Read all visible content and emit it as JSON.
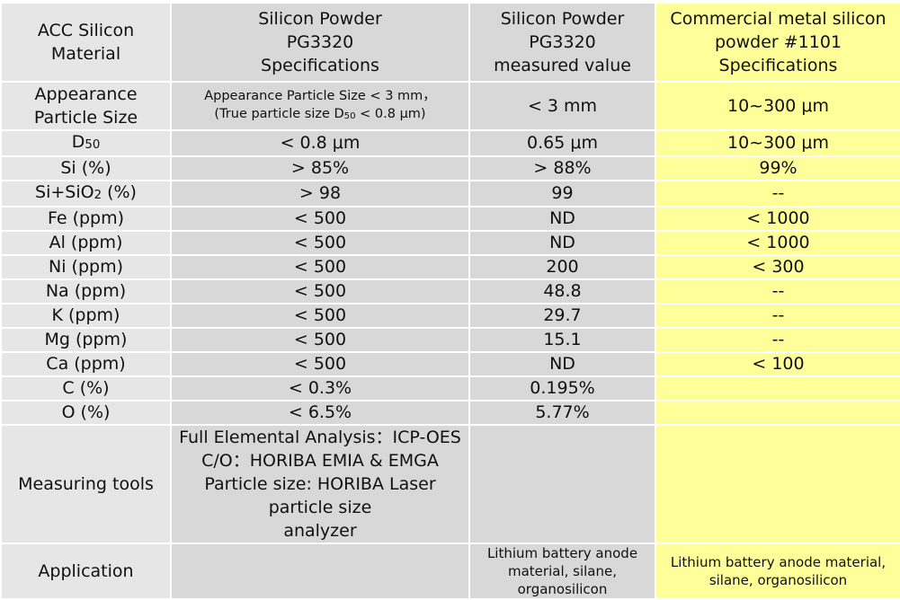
{
  "header": {
    "col0": [
      "ACC Silicon",
      "Material"
    ],
    "col1": [
      "Silicon Powder",
      "PG3320",
      "Specifications"
    ],
    "col2": [
      "Silicon Powder",
      "PG3320",
      "measured value"
    ],
    "col3": [
      "Commercial metal silicon",
      "powder #1101",
      "Specifications"
    ]
  },
  "appearance": {
    "label": [
      "Appearance",
      "Particle Size"
    ],
    "spec_line1": "Appearance Particle Size < 3 mm，",
    "spec_line2_pre": "(True particle size D",
    "spec_line2_sub": "50",
    "spec_line2_post": " < 0.8 μm)",
    "measured": "< 3 mm",
    "commercial": "10~300 μm"
  },
  "d50": {
    "label_main": "D",
    "label_sub": "50",
    "spec": "< 0.8 μm",
    "measured": "0.65 μm",
    "commercial": "10~300 μm"
  },
  "si": {
    "label": "Si (%)",
    "spec": "> 85%",
    "measured": "> 88%",
    "commercial": "99%"
  },
  "sisio2": {
    "label_pre": "Si+SiO",
    "label_sub": "2",
    "label_post": " (%)",
    "spec": "> 98",
    "measured": "99",
    "commercial": "--"
  },
  "rows": [
    {
      "label": "Fe (ppm)",
      "spec": "< 500",
      "measured": "ND",
      "commercial": "< 1000"
    },
    {
      "label": "Al (ppm)",
      "spec": "< 500",
      "measured": "ND",
      "commercial": "< 1000"
    },
    {
      "label": "Ni (ppm)",
      "spec": "< 500",
      "measured": "200",
      "commercial": "< 300"
    },
    {
      "label": "Na (ppm)",
      "spec": "< 500",
      "measured": "48.8",
      "commercial": "--"
    },
    {
      "label": "K (ppm)",
      "spec": "< 500",
      "measured": "29.7",
      "commercial": "--"
    },
    {
      "label": "Mg (ppm)",
      "spec": "< 500",
      "measured": "15.1",
      "commercial": "--"
    },
    {
      "label": "Ca (ppm)",
      "spec": "< 500",
      "measured": "ND",
      "commercial": "< 100"
    },
    {
      "label": "C (%)",
      "spec": "< 0.3%",
      "measured": "0.195%",
      "commercial": ""
    },
    {
      "label": "O (%)",
      "spec": "< 6.5%",
      "measured": "5.77%",
      "commercial": ""
    }
  ],
  "tools": {
    "label": "Measuring tools",
    "lines": [
      "Full Elemental Analysis：ICP-OES",
      "C/O：HORIBA EMIA & EMGA",
      "Particle size: HORIBA Laser particle size",
      "analyzer"
    ],
    "measured": "",
    "commercial": ""
  },
  "application": {
    "label": "Application",
    "spec": "",
    "measured": [
      "Lithium battery anode",
      "material, silane,",
      "organosilicon"
    ],
    "commercial": [
      "Lithium battery anode material,",
      "silane, organosilicon"
    ]
  },
  "colors": {
    "label_col": "#e6e6e6",
    "pg3320_cols": "#d8d8d8",
    "commercial_col": "#ffff99",
    "border": "#ffffff"
  }
}
